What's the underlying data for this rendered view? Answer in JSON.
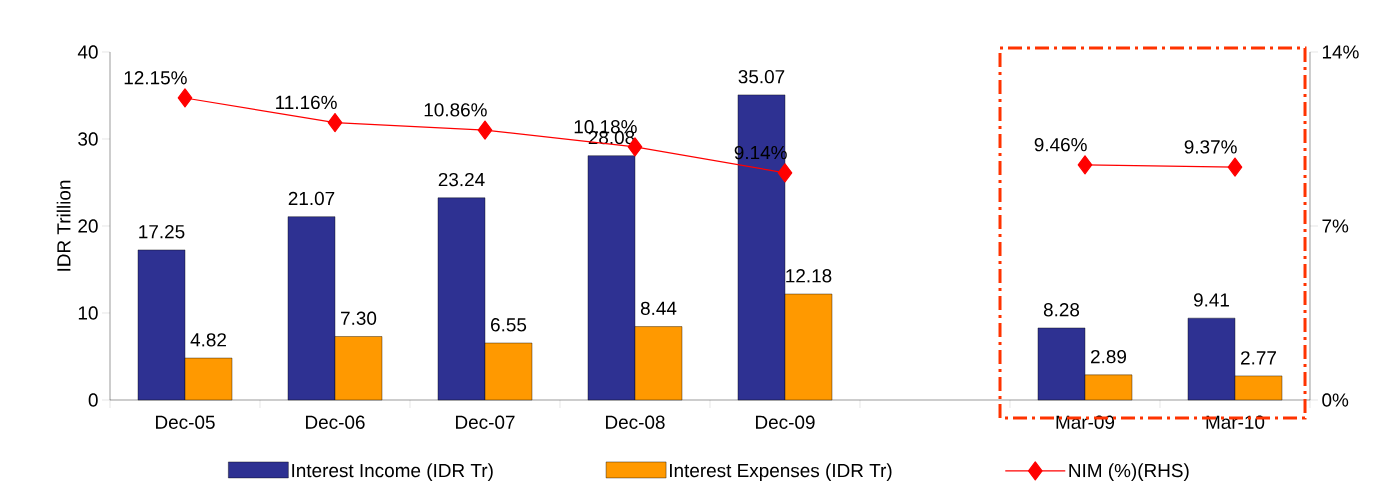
{
  "chart_data": {
    "type": "bar",
    "categories": [
      "Dec-05",
      "Dec-06",
      "Dec-07",
      "Dec-08",
      "Dec-09",
      null,
      "Mar-09",
      "Mar-10"
    ],
    "ylabel": "IDR Trillion",
    "ylim": [
      0,
      40
    ],
    "yticks": [
      0,
      10,
      20,
      30,
      40
    ],
    "y2lim": [
      0,
      14
    ],
    "y2ticks": [
      {
        "value": 0,
        "label": "0%"
      },
      {
        "value": 7,
        "label": "7%"
      },
      {
        "value": 14,
        "label": "14%"
      }
    ],
    "legend": "bottom",
    "series": [
      {
        "name": "Interest Income (IDR Tr)",
        "color": "#2e3192",
        "values": [
          17.25,
          21.07,
          23.24,
          28.08,
          35.07,
          null,
          8.28,
          9.41
        ],
        "value_labels": [
          "17.25",
          "21.07",
          "23.24",
          "28.08",
          "35.07",
          null,
          "8.28",
          "9.41"
        ]
      },
      {
        "name": "Interest Expenses (IDR Tr)",
        "color": "#ff9900",
        "values": [
          4.82,
          7.3,
          6.55,
          8.44,
          12.18,
          null,
          2.89,
          2.77
        ],
        "value_labels": [
          "4.82",
          "7.30",
          "6.55",
          "8.44",
          "12.18",
          null,
          "2.89",
          "2.77"
        ]
      },
      {
        "name": "NIM  (%)(RHS)",
        "type": "line",
        "axis": "y2",
        "marker": "diamond",
        "color": "#ff0000",
        "values": [
          12.15,
          11.16,
          10.86,
          10.18,
          9.14,
          null,
          9.46,
          9.37
        ],
        "value_labels": [
          "12.15%",
          "11.16%",
          "10.86%",
          "10.18%",
          "9.14%",
          null,
          "9.46%",
          "9.37%"
        ]
      }
    ]
  }
}
